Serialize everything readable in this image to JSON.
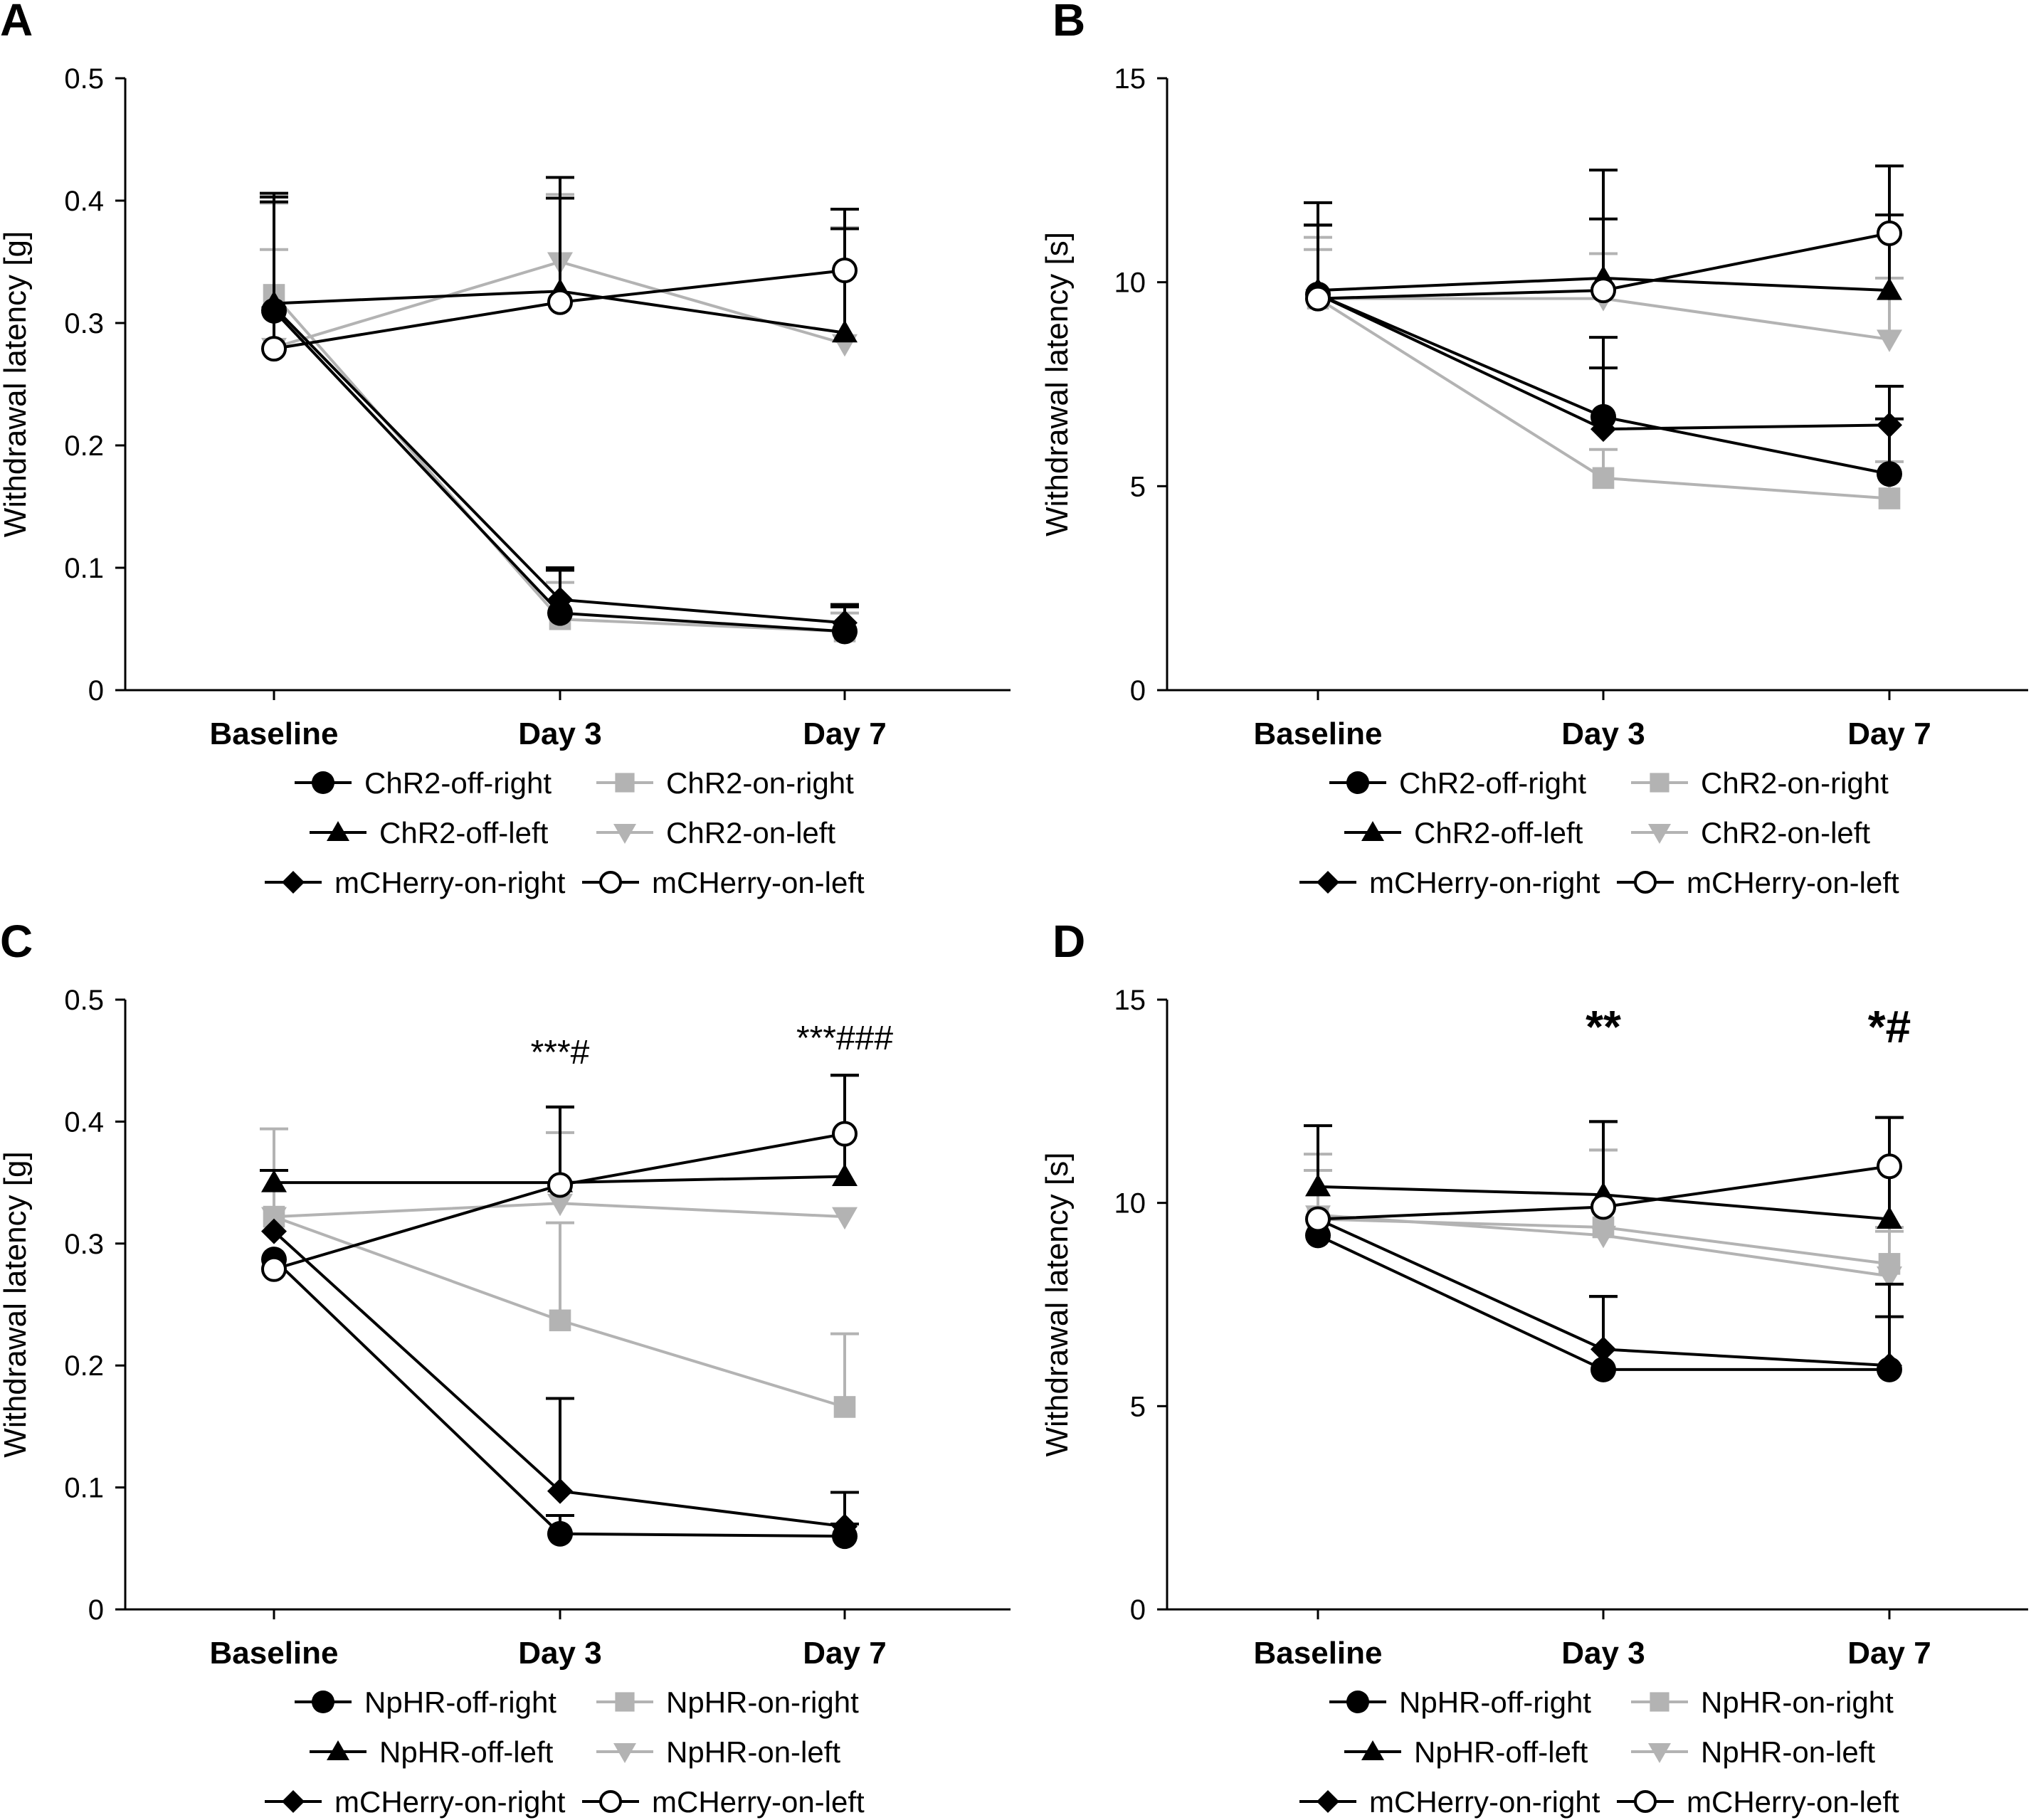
{
  "chart_data": [
    {
      "type": "line",
      "panel_label": "A",
      "ylabel": "Withdrawal latency [g]",
      "categories": [
        "Baseline",
        "Day 3",
        "Day 7"
      ],
      "ylim": [
        0,
        0.5
      ],
      "yticks": [
        "0",
        "0.1",
        "0.2",
        "0.3",
        "0.4",
        "0.5"
      ],
      "annotations": [
        "",
        "",
        ""
      ],
      "series": [
        {
          "name": "ChR2-off-right",
          "marker": "circle",
          "color": "#000000",
          "values": [
            0.31,
            0.063,
            0.048
          ],
          "errors": [
            0.093,
            0.035,
            0.02
          ]
        },
        {
          "name": "ChR2-on-right",
          "marker": "square",
          "color": "#b3b3b3",
          "values": [
            0.323,
            0.058,
            0.048
          ],
          "errors": [
            0.037,
            0.03,
            0.015
          ]
        },
        {
          "name": "ChR2-off-left",
          "marker": "triangle-up",
          "color": "#000000",
          "values": [
            0.316,
            0.326,
            0.292
          ],
          "errors": [
            0.09,
            0.093,
            0.085
          ]
        },
        {
          "name": "ChR2-on-left",
          "marker": "triangle-down",
          "color": "#b3b3b3",
          "values": [
            0.28,
            0.35,
            0.283
          ],
          "errors": [
            0.118,
            0.055,
            0.095
          ]
        },
        {
          "name": "mCHerry-on-right",
          "marker": "diamond",
          "color": "#000000",
          "values": [
            0.313,
            0.074,
            0.055
          ],
          "errors": [
            0.09,
            0.026,
            0.015
          ]
        },
        {
          "name": "mCHerry-on-left",
          "marker": "circle-open",
          "color": "#000000",
          "values": [
            0.279,
            0.317,
            0.343
          ],
          "errors": [
            0.12,
            0.085,
            0.05
          ]
        }
      ]
    },
    {
      "type": "line",
      "panel_label": "B",
      "ylabel": "Withdrawal latency [s]",
      "categories": [
        "Baseline",
        "Day 3",
        "Day 7"
      ],
      "ylim": [
        0,
        15
      ],
      "yticks": [
        "0",
        "5",
        "10",
        "15"
      ],
      "annotations": [
        "",
        "",
        ""
      ],
      "series": [
        {
          "name": "ChR2-off-right",
          "marker": "circle",
          "color": "#000000",
          "values": [
            9.7,
            6.7,
            5.3
          ],
          "errors": [
            2.25,
            1.95,
            1.35
          ]
        },
        {
          "name": "ChR2-on-right",
          "marker": "square",
          "color": "#b3b3b3",
          "values": [
            9.6,
            5.2,
            4.7
          ],
          "errors": [
            1.5,
            0.7,
            0.9
          ]
        },
        {
          "name": "ChR2-off-left",
          "marker": "triangle-up",
          "color": "#000000",
          "values": [
            9.8,
            10.1,
            9.8
          ],
          "errors": [
            1.6,
            2.65,
            1.85
          ]
        },
        {
          "name": "ChR2-on-left",
          "marker": "triangle-down",
          "color": "#b3b3b3",
          "values": [
            9.6,
            9.6,
            8.6
          ],
          "errors": [
            1.2,
            1.1,
            1.5
          ]
        },
        {
          "name": "mCHerry-on-right",
          "marker": "diamond",
          "color": "#000000",
          "values": [
            9.7,
            6.4,
            6.5
          ],
          "errors": [
            1.7,
            1.5,
            0.95
          ]
        },
        {
          "name": "mCHerry-on-left",
          "marker": "circle-open",
          "color": "#000000",
          "values": [
            9.6,
            9.8,
            11.2
          ],
          "errors": [
            1.8,
            1.75,
            1.65
          ]
        }
      ]
    },
    {
      "type": "line",
      "panel_label": "C",
      "ylabel": "Withdrawal latency [g]",
      "categories": [
        "Baseline",
        "Day 3",
        "Day 7"
      ],
      "ylim": [
        0,
        0.5
      ],
      "yticks": [
        "0",
        "0.1",
        "0.2",
        "0.3",
        "0.4",
        "0.5"
      ],
      "annotations": [
        "",
        "***#",
        "***###"
      ],
      "series": [
        {
          "name": "NpHR-off-right",
          "marker": "circle",
          "color": "#000000",
          "values": [
            0.287,
            0.062,
            0.06
          ],
          "errors": [
            0,
            0.015,
            0.01
          ]
        },
        {
          "name": "NpHR-on-right",
          "marker": "square",
          "color": "#b3b3b3",
          "values": [
            0.322,
            0.237,
            0.166
          ],
          "errors": [
            0.072,
            0.08,
            0.06
          ]
        },
        {
          "name": "NpHR-off-left",
          "marker": "triangle-up",
          "color": "#000000",
          "values": [
            0.35,
            0.35,
            0.355
          ],
          "errors": [
            0.01,
            0.062,
            0.083
          ]
        },
        {
          "name": "NpHR-on-left",
          "marker": "triangle-down",
          "color": "#b3b3b3",
          "values": [
            0.322,
            0.333,
            0.322
          ],
          "errors": [
            0,
            0.058,
            0.0
          ]
        },
        {
          "name": "mCHerry-on-right",
          "marker": "diamond",
          "color": "#000000",
          "values": [
            0.31,
            0.097,
            0.068
          ],
          "errors": [
            0,
            0.076,
            0.028
          ]
        },
        {
          "name": "mCHerry-on-left",
          "marker": "circle-open",
          "color": "#000000",
          "values": [
            0.279,
            0.348,
            0.39
          ],
          "errors": [
            0,
            0.064,
            0.048
          ]
        }
      ]
    },
    {
      "type": "line",
      "panel_label": "D",
      "ylabel": "Withdrawal latency [s]",
      "categories": [
        "Baseline",
        "Day 3",
        "Day 7"
      ],
      "ylim": [
        0,
        15
      ],
      "yticks": [
        "0",
        "5",
        "10",
        "15"
      ],
      "annotations": [
        "",
        "**",
        "*#"
      ],
      "series": [
        {
          "name": "NpHR-off-right",
          "marker": "circle",
          "color": "#000000",
          "values": [
            9.2,
            5.9,
            5.9
          ],
          "errors": [
            0,
            1.8,
            1.3
          ]
        },
        {
          "name": "NpHR-on-right",
          "marker": "square",
          "color": "#b3b3b3",
          "values": [
            9.6,
            9.4,
            8.5
          ],
          "errors": [
            1.6,
            1.9,
            0.9
          ]
        },
        {
          "name": "NpHR-off-left",
          "marker": "triangle-up",
          "color": "#000000",
          "values": [
            10.4,
            10.2,
            9.6
          ],
          "errors": [
            1.5,
            1.8,
            2.5
          ]
        },
        {
          "name": "NpHR-on-left",
          "marker": "triangle-down",
          "color": "#b3b3b3",
          "values": [
            9.7,
            9.2,
            8.2
          ],
          "errors": [
            1.1,
            2.1,
            1.1
          ]
        },
        {
          "name": "mCHerry-on-right",
          "marker": "diamond",
          "color": "#000000",
          "values": [
            9.6,
            6.4,
            6.0
          ],
          "errors": [
            0,
            1.3,
            2.0
          ]
        },
        {
          "name": "mCHerry-on-left",
          "marker": "circle-open",
          "color": "#000000",
          "values": [
            9.6,
            9.9,
            10.9
          ],
          "errors": [
            0,
            2.1,
            1.2
          ]
        }
      ]
    }
  ]
}
